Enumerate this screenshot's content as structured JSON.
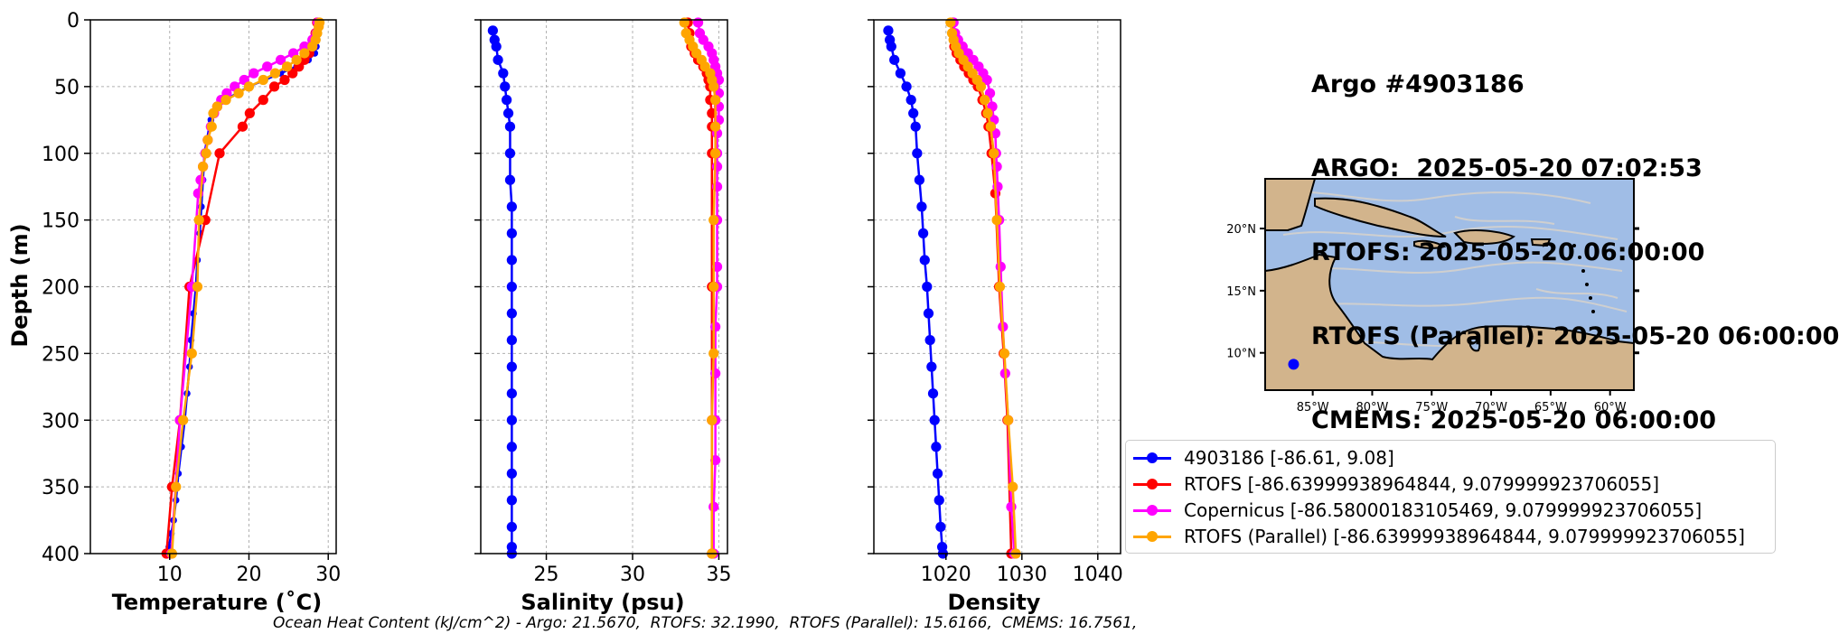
{
  "title_lines": [
    "Argo #4903186",
    "ARGO:  2025-05-20 07:02:53",
    "RTOFS: 2025-05-20 06:00:00",
    "RTOFS (Parallel): 2025-05-20 06:00:00",
    "CMEMS: 2025-05-20 06:00:00"
  ],
  "footer": "Ocean Heat Content (kJ/cm^2) - Argo: 21.5670,  RTOFS: 32.1990,  RTOFS (Parallel): 15.6166,  CMEMS: 16.7561,",
  "colors": {
    "argo": "#0000ff",
    "rtofs": "#ff0000",
    "copernicus": "#ff00ff",
    "parallel": "#ffa500"
  },
  "legend": [
    {
      "label": "4903186 [-86.61, 9.08]",
      "color": "#0000ff"
    },
    {
      "label": "RTOFS [-86.63999938964844, 9.079999923706055]",
      "color": "#ff0000"
    },
    {
      "label": "Copernicus [-86.58000183105469, 9.079999923706055]",
      "color": "#ff00ff"
    },
    {
      "label": "RTOFS (Parallel) [-86.63999938964844, 9.079999923706055]",
      "color": "#ffa500"
    }
  ],
  "chart_data": [
    {
      "type": "line",
      "xlabel": "Temperature (˚C)",
      "ylabel": "Depth (m)",
      "xlim": [
        0,
        31
      ],
      "ylim": [
        400,
        0
      ],
      "xticks": [
        10,
        20,
        30
      ],
      "yticks": [
        0,
        50,
        100,
        150,
        200,
        250,
        300,
        350,
        400
      ],
      "grid": true,
      "series": [
        {
          "name": "4903186",
          "color": "#0000ff",
          "marker_size": 6,
          "x": [
            28.8,
            28.8,
            28.7,
            28.6,
            28.5,
            28.3,
            27.5,
            26.0,
            24.0,
            22.0,
            20.0,
            18.5,
            17.0,
            16.0,
            15.5,
            15.2,
            15.0,
            14.7,
            14.4,
            14.2,
            14.0,
            13.8,
            13.5,
            13.3,
            13.0,
            12.7,
            12.5,
            12.2,
            11.9,
            11.5,
            11.1,
            10.8,
            10.5,
            10.2,
            9.9,
            9.8
          ],
          "y": [
            2,
            5,
            10,
            15,
            20,
            25,
            30,
            35,
            40,
            45,
            50,
            55,
            60,
            65,
            70,
            75,
            80,
            90,
            100,
            120,
            140,
            160,
            180,
            200,
            220,
            240,
            260,
            280,
            300,
            320,
            340,
            360,
            375,
            385,
            395,
            400
          ]
        },
        {
          "name": "RTOFS",
          "color": "#ff0000",
          "marker_size": 9,
          "x": [
            28.6,
            28.4,
            28.0,
            27.6,
            27.0,
            26.3,
            25.5,
            24.5,
            23.2,
            21.8,
            20.1,
            19.2,
            16.3,
            14.5,
            12.5,
            11.3,
            10.3,
            9.6
          ],
          "y": [
            2,
            10,
            20,
            25,
            30,
            35,
            40,
            45,
            50,
            60,
            70,
            80,
            100,
            150,
            200,
            300,
            350,
            400
          ]
        },
        {
          "name": "Copernicus",
          "color": "#ff00ff",
          "marker_size": 9,
          "x": [
            28.7,
            28.5,
            28.0,
            27.0,
            25.6,
            24.0,
            22.3,
            20.6,
            19.4,
            18.2,
            17.2,
            16.5,
            16.0,
            15.6,
            15.2,
            14.8,
            14.5,
            14.2,
            13.9,
            13.6,
            12.8,
            11.3,
            10.2
          ],
          "y": [
            2,
            10,
            15,
            20,
            25,
            30,
            35,
            40,
            45,
            50,
            55,
            60,
            65,
            70,
            80,
            90,
            100,
            110,
            120,
            130,
            200,
            300,
            400
          ]
        },
        {
          "name": "RTOFS (Parallel)",
          "color": "#ffa500",
          "marker_size": 9,
          "x": [
            28.9,
            28.8,
            28.6,
            28.4,
            28.0,
            27.0,
            26.0,
            24.8,
            23.3,
            21.8,
            20.0,
            18.7,
            17.1,
            16.0,
            15.5,
            15.3,
            14.8,
            14.6,
            14.2,
            13.7,
            13.5,
            12.8,
            11.7,
            10.8,
            10.3
          ],
          "y": [
            2,
            5,
            10,
            15,
            20,
            25,
            30,
            35,
            40,
            45,
            50,
            55,
            60,
            65,
            70,
            80,
            90,
            100,
            110,
            150,
            200,
            250,
            300,
            350,
            400
          ]
        }
      ]
    },
    {
      "type": "line",
      "xlabel": "Salinity (psu)",
      "ylabel": "",
      "xlim": [
        21.2,
        35.5
      ],
      "ylim": [
        400,
        0
      ],
      "xticks": [
        25,
        30,
        35
      ],
      "grid": true,
      "series": [
        {
          "name": "4903186",
          "color": "#0000ff",
          "marker_size": 9,
          "x": [
            21.9,
            22.0,
            22.1,
            22.2,
            22.5,
            22.6,
            22.7,
            22.8,
            22.9,
            22.9,
            22.9,
            23.0,
            23.0,
            23.0,
            23.0,
            23.0,
            23.0,
            23.0,
            23.0,
            23.0,
            23.0,
            23.0,
            23.0,
            23.0,
            23.0,
            23.0
          ],
          "y": [
            8,
            15,
            20,
            30,
            40,
            50,
            60,
            70,
            80,
            100,
            120,
            140,
            160,
            180,
            200,
            220,
            240,
            260,
            280,
            300,
            320,
            340,
            360,
            380,
            395,
            400
          ]
        },
        {
          "name": "RTOFS",
          "color": "#ff0000",
          "marker_size": 9,
          "x": [
            33.2,
            33.3,
            33.4,
            33.6,
            33.8,
            34.1,
            34.3,
            34.4,
            34.5,
            34.5,
            34.6,
            34.6,
            34.6,
            34.6,
            34.6,
            34.6
          ],
          "y": [
            2,
            10,
            20,
            25,
            30,
            35,
            40,
            45,
            50,
            60,
            70,
            80,
            100,
            200,
            300,
            400
          ]
        },
        {
          "name": "Copernicus",
          "color": "#ff00ff",
          "marker_size": 9,
          "x": [
            33.8,
            33.9,
            34.1,
            34.4,
            34.6,
            34.7,
            34.8,
            34.9,
            35.0,
            35.0,
            35.0,
            35.0,
            34.9,
            34.9,
            34.9,
            34.9,
            34.9,
            34.9,
            34.9,
            34.8,
            34.8,
            34.8,
            34.8,
            34.7,
            34.7
          ],
          "y": [
            2,
            10,
            15,
            20,
            25,
            30,
            35,
            40,
            45,
            55,
            65,
            75,
            85,
            100,
            110,
            125,
            150,
            185,
            200,
            230,
            265,
            300,
            330,
            365,
            400
          ]
        },
        {
          "name": "RTOFS (Parallel)",
          "color": "#ffa500",
          "marker_size": 9,
          "x": [
            33.0,
            33.1,
            33.3,
            33.5,
            33.7,
            34.0,
            34.2,
            34.5,
            34.6,
            34.7,
            34.8,
            34.8,
            34.8,
            34.7,
            34.7,
            34.7,
            34.6,
            34.6
          ],
          "y": [
            2,
            10,
            15,
            20,
            25,
            30,
            35,
            40,
            45,
            50,
            60,
            80,
            100,
            150,
            200,
            250,
            300,
            400
          ]
        }
      ]
    },
    {
      "type": "line",
      "xlabel": "Density",
      "ylabel": "",
      "xlim": [
        1010.5,
        1043
      ],
      "ylim": [
        400,
        0
      ],
      "xticks": [
        1020,
        1030,
        1040
      ],
      "grid": true,
      "series": [
        {
          "name": "4903186",
          "color": "#0000ff",
          "marker_size": 9,
          "x": [
            1012.4,
            1012.6,
            1012.8,
            1013.2,
            1014.0,
            1014.8,
            1015.4,
            1015.7,
            1016.0,
            1016.2,
            1016.5,
            1016.8,
            1017.0,
            1017.2,
            1017.5,
            1017.7,
            1017.9,
            1018.1,
            1018.3,
            1018.5,
            1018.7,
            1018.9,
            1019.1,
            1019.3,
            1019.5,
            1019.6
          ],
          "y": [
            8,
            15,
            20,
            30,
            40,
            50,
            60,
            70,
            80,
            100,
            120,
            140,
            160,
            180,
            200,
            220,
            240,
            260,
            280,
            300,
            320,
            340,
            360,
            380,
            395,
            400
          ]
        },
        {
          "name": "RTOFS",
          "color": "#ff0000",
          "marker_size": 9,
          "x": [
            1020.9,
            1021.0,
            1021.1,
            1021.4,
            1021.9,
            1022.4,
            1023.0,
            1023.6,
            1024.2,
            1024.8,
            1025.3,
            1025.6,
            1026.0,
            1026.5,
            1027.0,
            1027.6,
            1028.1,
            1028.6
          ],
          "y": [
            2,
            10,
            20,
            25,
            30,
            35,
            40,
            45,
            50,
            60,
            70,
            80,
            100,
            130,
            200,
            250,
            300,
            400
          ]
        },
        {
          "name": "Copernicus",
          "color": "#ff00ff",
          "marker_size": 9,
          "x": [
            1021.0,
            1021.2,
            1021.6,
            1022.2,
            1022.9,
            1023.6,
            1024.3,
            1024.9,
            1025.4,
            1025.8,
            1026.1,
            1026.3,
            1026.5,
            1026.6,
            1026.7,
            1026.8,
            1027.0,
            1027.2,
            1027.5,
            1027.8,
            1028.2,
            1028.6,
            1029.0
          ],
          "y": [
            2,
            10,
            15,
            20,
            25,
            30,
            35,
            40,
            45,
            55,
            65,
            75,
            85,
            100,
            110,
            125,
            150,
            185,
            230,
            265,
            300,
            365,
            400
          ]
        },
        {
          "name": "RTOFS (Parallel)",
          "color": "#ffa500",
          "marker_size": 9,
          "x": [
            1020.6,
            1020.8,
            1021.0,
            1021.3,
            1021.7,
            1022.3,
            1022.9,
            1023.5,
            1024.1,
            1024.6,
            1025.1,
            1025.5,
            1025.9,
            1026.3,
            1026.7,
            1027.1,
            1027.7,
            1028.2,
            1028.8,
            1029.2
          ],
          "y": [
            2,
            10,
            15,
            20,
            25,
            30,
            35,
            40,
            45,
            50,
            60,
            70,
            80,
            100,
            150,
            200,
            250,
            300,
            350,
            400
          ]
        }
      ]
    }
  ],
  "map": {
    "lon_ticks": [
      "85°W",
      "80°W",
      "75°W",
      "70°W",
      "65°W",
      "60°W"
    ],
    "lat_ticks": [
      "20°N",
      "15°N",
      "10°N"
    ],
    "lon_range": [
      -89,
      -58
    ],
    "lat_range": [
      7,
      24
    ],
    "float_position": [
      -86.61,
      9.08
    ],
    "ocean_color": "#a0bde6",
    "land_color": "#d2b48c",
    "current_color": "#cfcfcf"
  }
}
